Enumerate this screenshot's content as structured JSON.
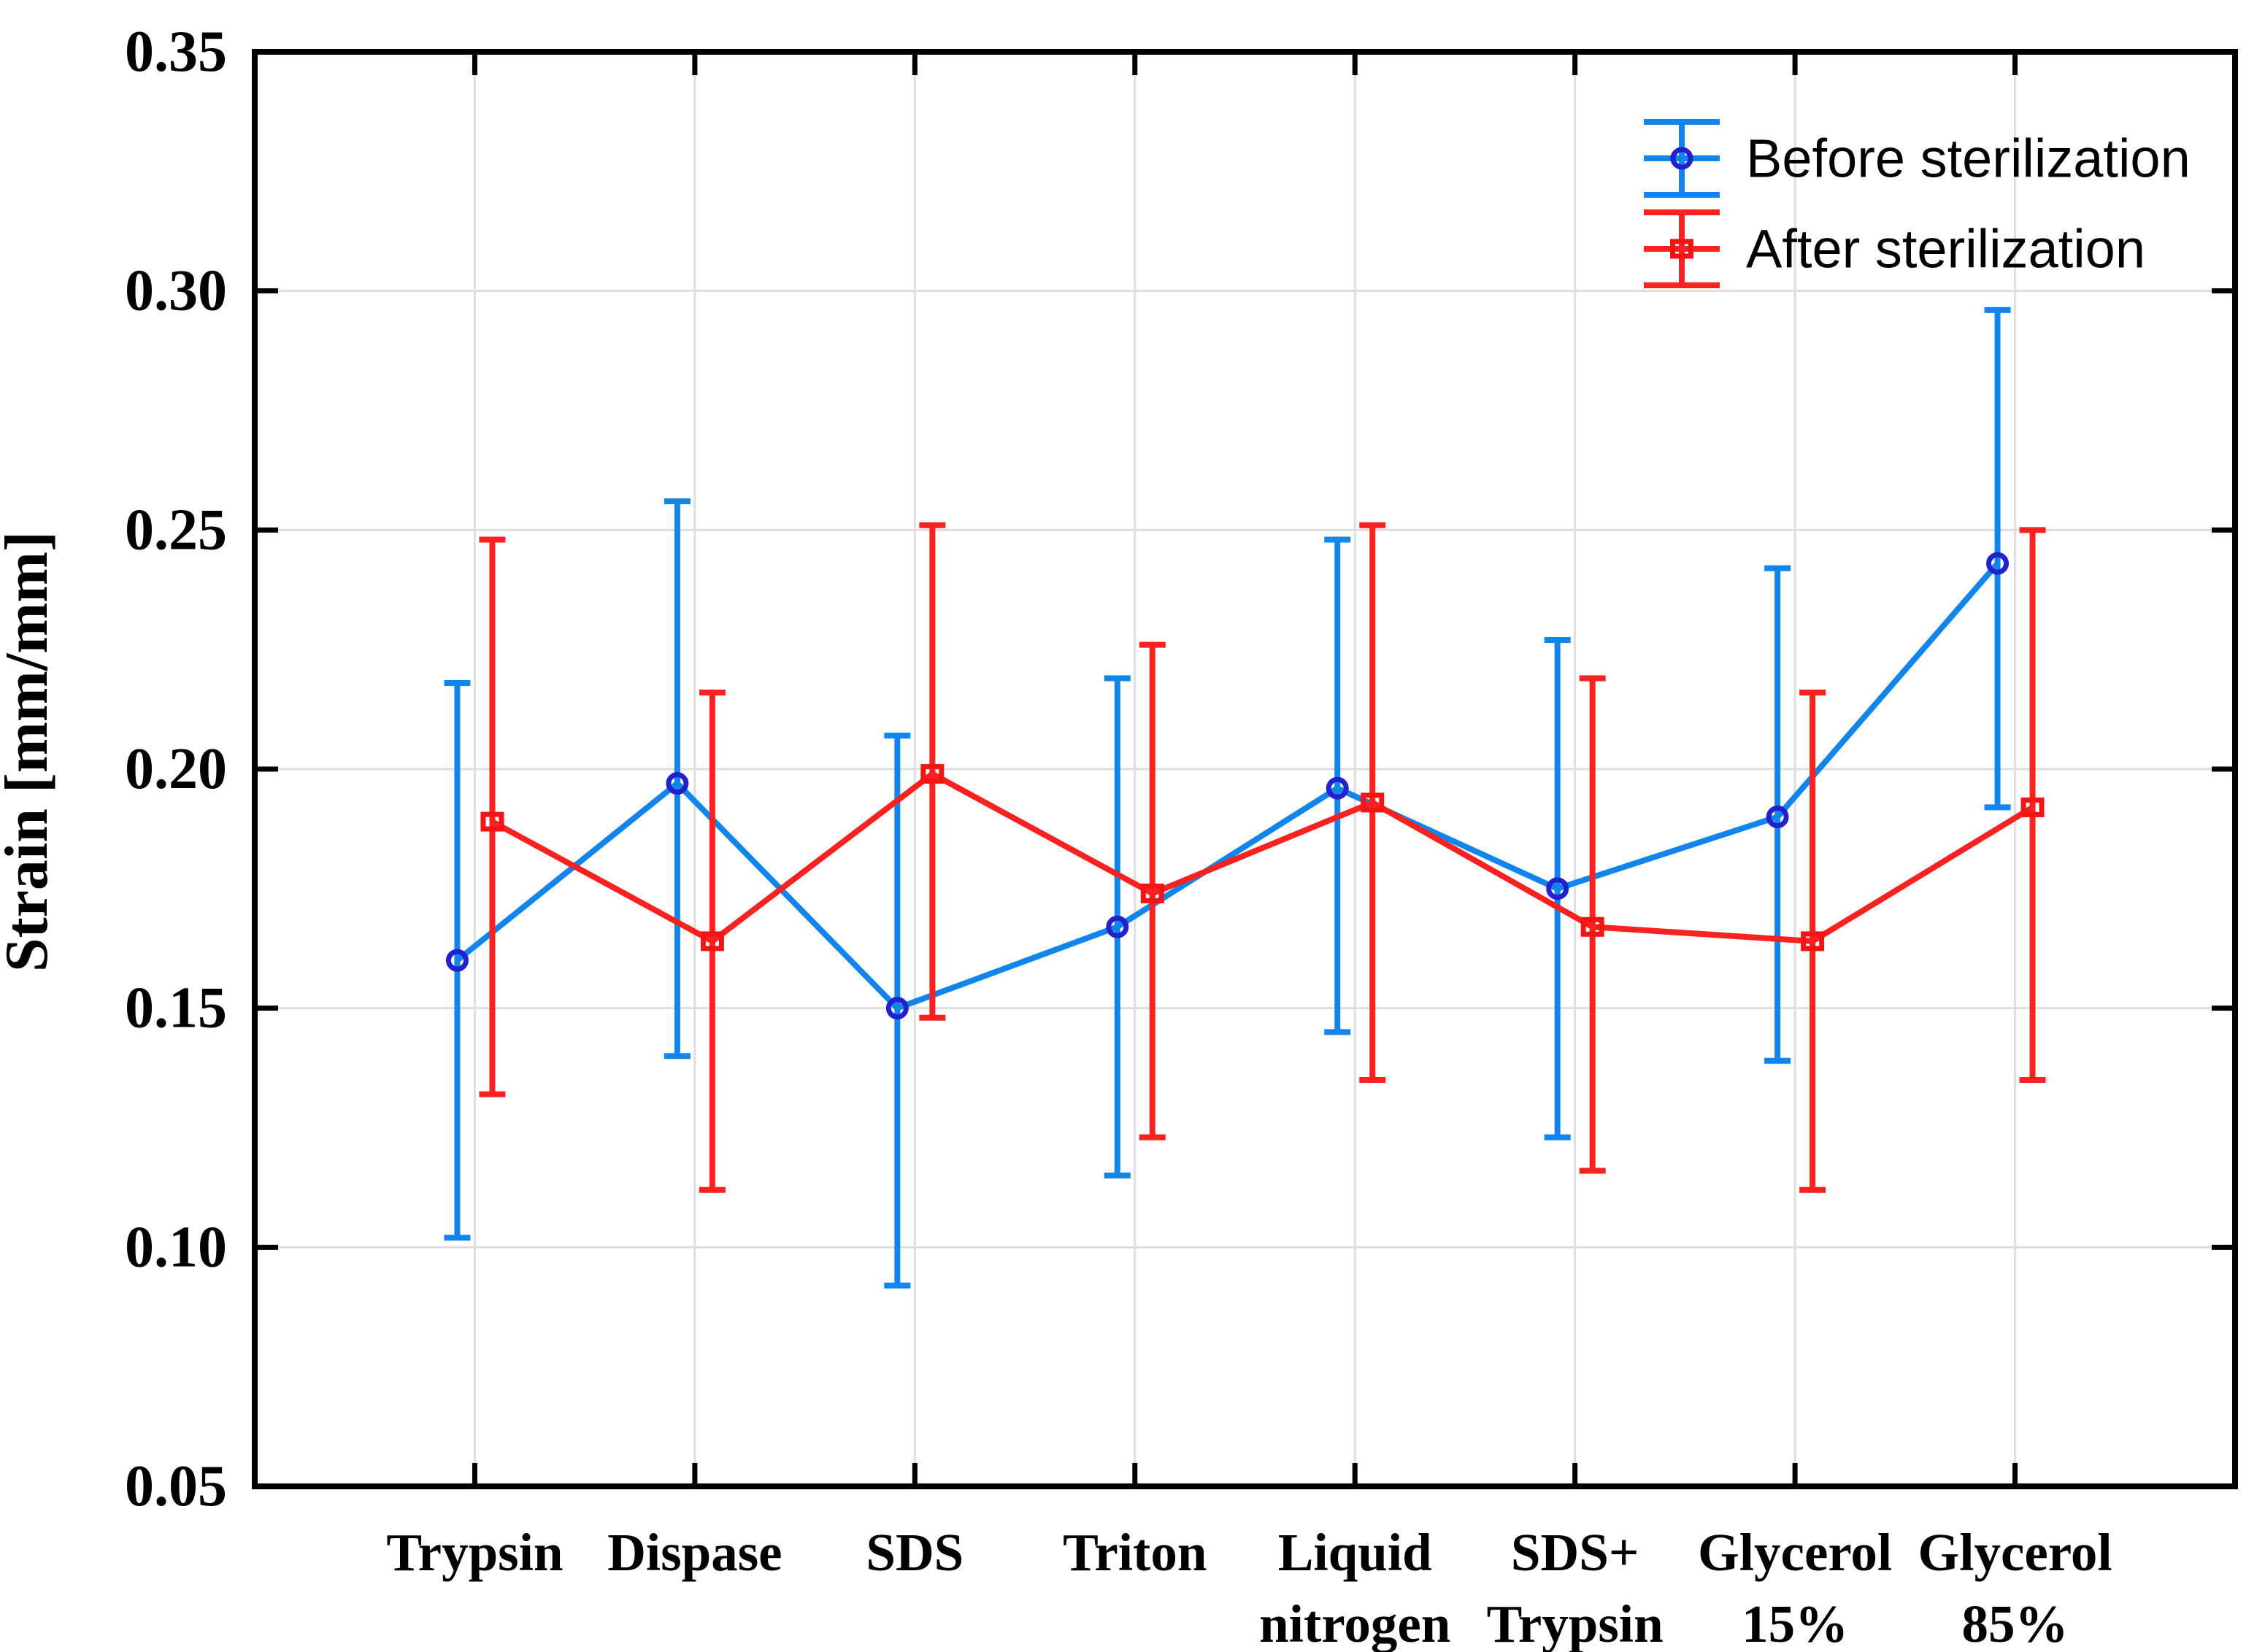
{
  "chart_data": {
    "type": "line",
    "title": "",
    "xlabel": "",
    "ylabel": "Strain [mm/mm]",
    "ylim": [
      0.05,
      0.35
    ],
    "ytick_step": 0.05,
    "yticks": [
      "0.35",
      "0.30",
      "0.25",
      "0.20",
      "0.15",
      "0.10",
      "0.05"
    ],
    "grid": true,
    "legend_position": "top-right",
    "categories": [
      [
        "Trypsin"
      ],
      [
        "Dispase"
      ],
      [
        "SDS"
      ],
      [
        "Triton"
      ],
      [
        "Liquid",
        "nitrogen"
      ],
      [
        "SDS+",
        "Trypsin"
      ],
      [
        "Glycerol",
        "15%"
      ],
      [
        "Glycerol",
        "85%"
      ]
    ],
    "series": [
      {
        "name": "Before sterilization",
        "marker": "circle",
        "line_color": "#1185EC",
        "marker_edge_color": "#2222CD",
        "means": [
          0.16,
          0.197,
          0.15,
          0.167,
          0.196,
          0.175,
          0.19,
          0.243
        ],
        "err_low": [
          0.102,
          0.14,
          0.092,
          0.115,
          0.145,
          0.123,
          0.139,
          0.192
        ],
        "err_high": [
          0.218,
          0.256,
          0.207,
          0.219,
          0.248,
          0.227,
          0.242,
          0.296
        ]
      },
      {
        "name": "After sterilization",
        "marker": "square",
        "line_color": "#FA2121",
        "marker_edge_color": "#F51414",
        "means": [
          0.189,
          0.164,
          0.199,
          0.174,
          0.193,
          0.167,
          0.164,
          0.192
        ],
        "err_low": [
          0.132,
          0.112,
          0.148,
          0.123,
          0.135,
          0.116,
          0.112,
          0.135
        ],
        "err_high": [
          0.248,
          0.216,
          0.251,
          0.226,
          0.251,
          0.219,
          0.216,
          0.25
        ]
      }
    ],
    "colors": {
      "grid": "#DEDEDE",
      "axis": "#000000",
      "background": "#FFFFFF"
    }
  }
}
